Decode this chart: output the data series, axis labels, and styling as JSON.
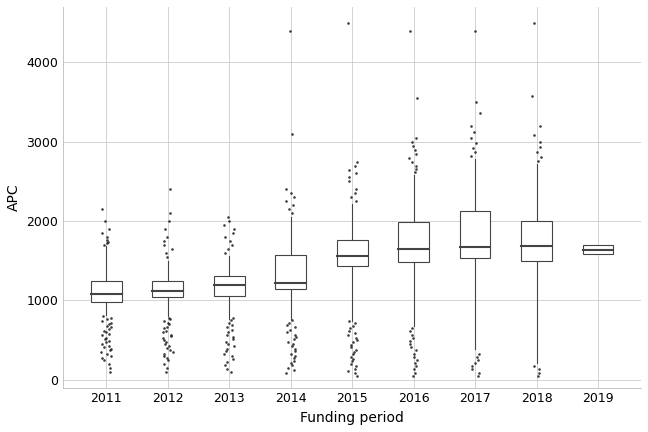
{
  "years": [
    "2011",
    "2012",
    "2013",
    "2014",
    "2015",
    "2016",
    "2017",
    "2018",
    "2019"
  ],
  "boxes": [
    {
      "q1": 980,
      "median": 1080,
      "q3": 1250,
      "whisker_low": 820,
      "whisker_high": 1680,
      "outliers": [
        100,
        150,
        200,
        250,
        280,
        300,
        320,
        350,
        370,
        390,
        410,
        430,
        450,
        470,
        490,
        510,
        530,
        560,
        580,
        600,
        620,
        640,
        660,
        680,
        700,
        720,
        740,
        760,
        780,
        800,
        1700,
        1720,
        1740,
        1760,
        1800,
        1850,
        1900,
        2000,
        2150
      ]
    },
    {
      "q1": 1040,
      "median": 1120,
      "q3": 1240,
      "whisker_low": 800,
      "whisker_high": 1500,
      "outliers": [
        100,
        150,
        200,
        250,
        280,
        300,
        320,
        350,
        380,
        400,
        420,
        450,
        480,
        500,
        520,
        550,
        570,
        600,
        620,
        650,
        670,
        700,
        720,
        740,
        760,
        780,
        1550,
        1600,
        1650,
        1700,
        1750,
        1800,
        1900,
        2000,
        2100,
        2400
      ]
    },
    {
      "q1": 1060,
      "median": 1200,
      "q3": 1310,
      "whisker_low": 770,
      "whisker_high": 1560,
      "outliers": [
        100,
        140,
        180,
        220,
        260,
        300,
        330,
        360,
        390,
        420,
        450,
        480,
        510,
        540,
        570,
        600,
        630,
        660,
        690,
        720,
        750,
        780,
        1600,
        1650,
        1700,
        1750,
        1800,
        1850,
        1900,
        1950,
        2000,
        2050
      ]
    },
    {
      "q1": 1140,
      "median": 1220,
      "q3": 1570,
      "whisker_low": 770,
      "whisker_high": 2050,
      "outliers": [
        90,
        120,
        150,
        180,
        210,
        240,
        270,
        300,
        330,
        360,
        390,
        420,
        450,
        480,
        510,
        540,
        570,
        600,
        630,
        660,
        690,
        720,
        750,
        2100,
        2150,
        2200,
        2250,
        2300,
        2350,
        2400,
        3100,
        4400
      ]
    },
    {
      "q1": 1430,
      "median": 1560,
      "q3": 1760,
      "whisker_low": 740,
      "whisker_high": 2220,
      "outliers": [
        50,
        80,
        110,
        140,
        170,
        200,
        230,
        260,
        290,
        320,
        350,
        380,
        410,
        440,
        470,
        500,
        530,
        560,
        590,
        620,
        650,
        680,
        710,
        740,
        2250,
        2300,
        2350,
        2400,
        2500,
        2550,
        2600,
        2650,
        2700,
        2750,
        4500
      ]
    },
    {
      "q1": 1490,
      "median": 1650,
      "q3": 1990,
      "whisker_low": 680,
      "whisker_high": 2580,
      "outliers": [
        50,
        90,
        130,
        170,
        210,
        250,
        290,
        330,
        370,
        410,
        450,
        490,
        530,
        570,
        610,
        650,
        2620,
        2660,
        2700,
        2750,
        2800,
        2850,
        2900,
        2950,
        3000,
        3050,
        3550,
        4400
      ]
    },
    {
      "q1": 1530,
      "median": 1670,
      "q3": 2130,
      "whisker_low": 390,
      "whisker_high": 2780,
      "outliers": [
        50,
        90,
        130,
        170,
        210,
        250,
        290,
        330,
        2820,
        2870,
        2920,
        2980,
        3050,
        3120,
        3200,
        3360,
        3500,
        4400
      ]
    },
    {
      "q1": 1500,
      "median": 1680,
      "q3": 2000,
      "whisker_low": 210,
      "whisker_high": 2720,
      "outliers": [
        50,
        90,
        130,
        170,
        2760,
        2810,
        2870,
        2930,
        3000,
        3080,
        3200,
        3580,
        4500
      ]
    },
    {
      "q1": 1590,
      "median": 1640,
      "q3": 1700,
      "whisker_low": 1590,
      "whisker_high": 1700,
      "outliers": []
    }
  ],
  "ylabel": "APC",
  "xlabel": "Funding period",
  "ylim": [
    -100,
    4700
  ],
  "yticks": [
    0,
    1000,
    2000,
    3000,
    4000
  ],
  "bg_color": "#ffffff",
  "panel_bg": "#ffffff",
  "grid_color": "#cccccc",
  "box_facecolor": "#ffffff",
  "box_edgecolor": "#444444",
  "median_color": "#444444",
  "whisker_color": "#444444",
  "flier_color": "#1a1a1a",
  "flier_size": 3.5,
  "box_width": 0.5,
  "linewidth": 0.8,
  "median_linewidth": 1.5
}
